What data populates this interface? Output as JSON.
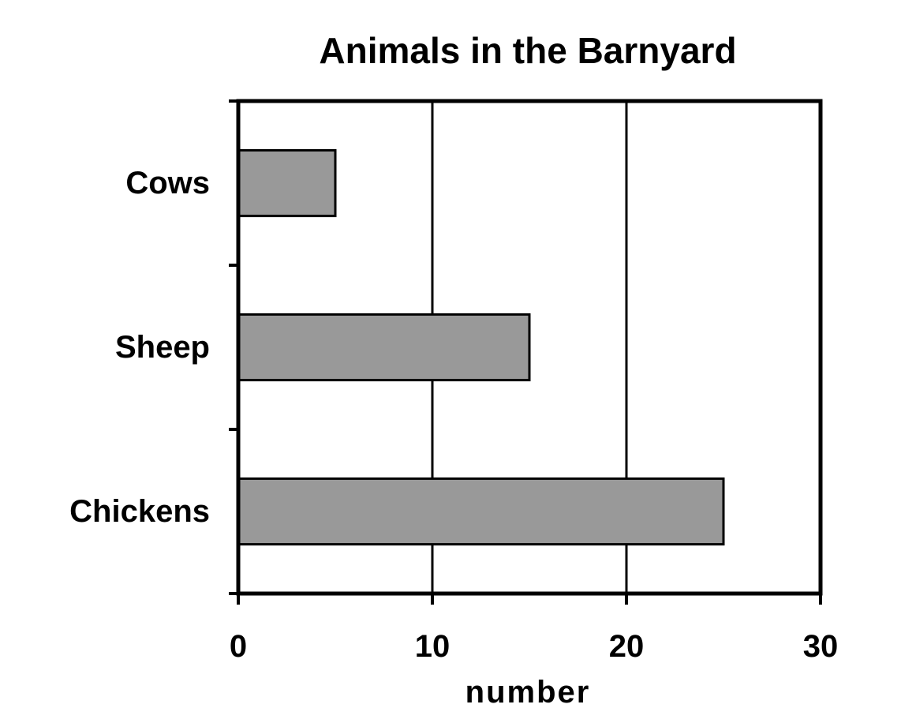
{
  "chart_data": {
    "type": "bar",
    "orientation": "horizontal",
    "title": "Animals in the Barnyard",
    "xlabel": "number",
    "ylabel": "",
    "categories": [
      "Cows",
      "Sheep",
      "Chickens"
    ],
    "values": [
      5,
      15,
      25
    ],
    "xlim": [
      0,
      30
    ],
    "xticks": [
      0,
      10,
      20,
      30
    ],
    "xtick_labels": [
      "0",
      "10",
      "20",
      "30"
    ],
    "grid": "vertical gridlines",
    "legend": "none",
    "colors": {
      "bar_fill": "#999999",
      "bar_stroke": "#000000",
      "axis": "#000000",
      "background": "#ffffff"
    }
  }
}
